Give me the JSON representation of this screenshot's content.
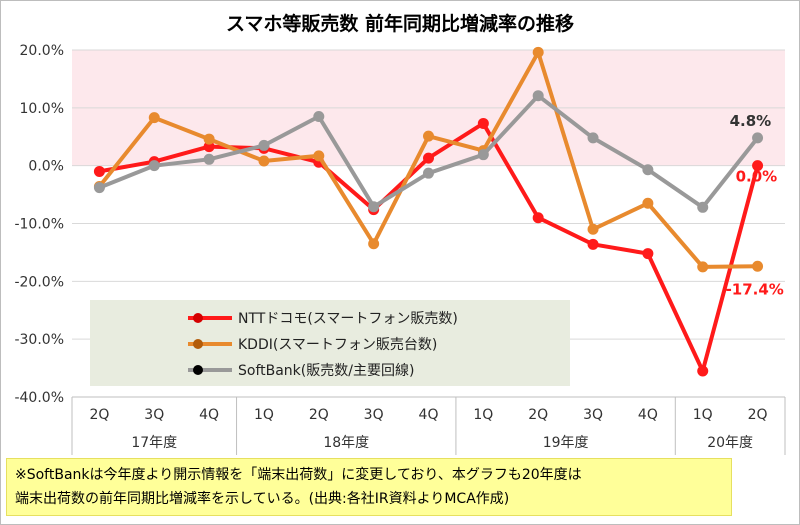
{
  "chart_data": {
    "type": "line",
    "title": "スマホ等販売数 前年同期比増減率の推移",
    "y_ticks": [
      "20.0%",
      "10.0%",
      "0.0%",
      "-10.0%",
      "-20.0%",
      "-30.0%",
      "-40.0%"
    ],
    "ylim": [
      -40,
      20
    ],
    "highlight_band": [
      0,
      20
    ],
    "categories": [
      "2Q",
      "3Q",
      "4Q",
      "1Q",
      "2Q",
      "3Q",
      "4Q",
      "1Q",
      "2Q",
      "3Q",
      "4Q",
      "1Q",
      "2Q"
    ],
    "groups": [
      {
        "label": "17年度",
        "count": 3
      },
      {
        "label": "18年度",
        "count": 4
      },
      {
        "label": "19年度",
        "count": 4
      },
      {
        "label": "20年度",
        "count": 2
      }
    ],
    "series": [
      {
        "name": "NTTドコモ(スマートフォン販売数)",
        "color": "#ff1a1a",
        "values": [
          -1.0,
          0.7,
          3.3,
          3.0,
          0.6,
          -7.6,
          1.3,
          7.3,
          -9.0,
          -13.6,
          -15.2,
          -35.5,
          0.0
        ]
      },
      {
        "name": "KDDI(スマートフォン販売台数)",
        "color": "#e88a2e",
        "values": [
          -3.6,
          8.3,
          4.6,
          0.8,
          1.7,
          -13.5,
          5.1,
          2.6,
          19.6,
          -11.0,
          -6.5,
          -17.5,
          -17.4
        ]
      },
      {
        "name": "SoftBank(販売数/主要回線)",
        "color": "#999999",
        "values": [
          -3.8,
          0.0,
          1.1,
          3.5,
          8.5,
          -7.1,
          -1.3,
          1.9,
          12.1,
          4.8,
          -0.7,
          -7.2,
          4.8
        ]
      }
    ],
    "annotations": [
      {
        "text": "4.8%",
        "series": 2,
        "index": 12,
        "color": "#333333"
      },
      {
        "text": "0.0%",
        "series": 0,
        "index": 12,
        "color": "#ff1a1a"
      },
      {
        "text": "-17.4%",
        "series": 1,
        "index": 12,
        "color": "#ff1a1a"
      }
    ],
    "legend_position": "lower-left"
  },
  "note": {
    "line1": "※SoftBankは今年度より開示情報を「端末出荷数」に変更しており、本グラフも20年度は",
    "line2": "端末出荷数の前年同期比増減率を示している。(出典:各社IR資料よりMCA作成)"
  }
}
